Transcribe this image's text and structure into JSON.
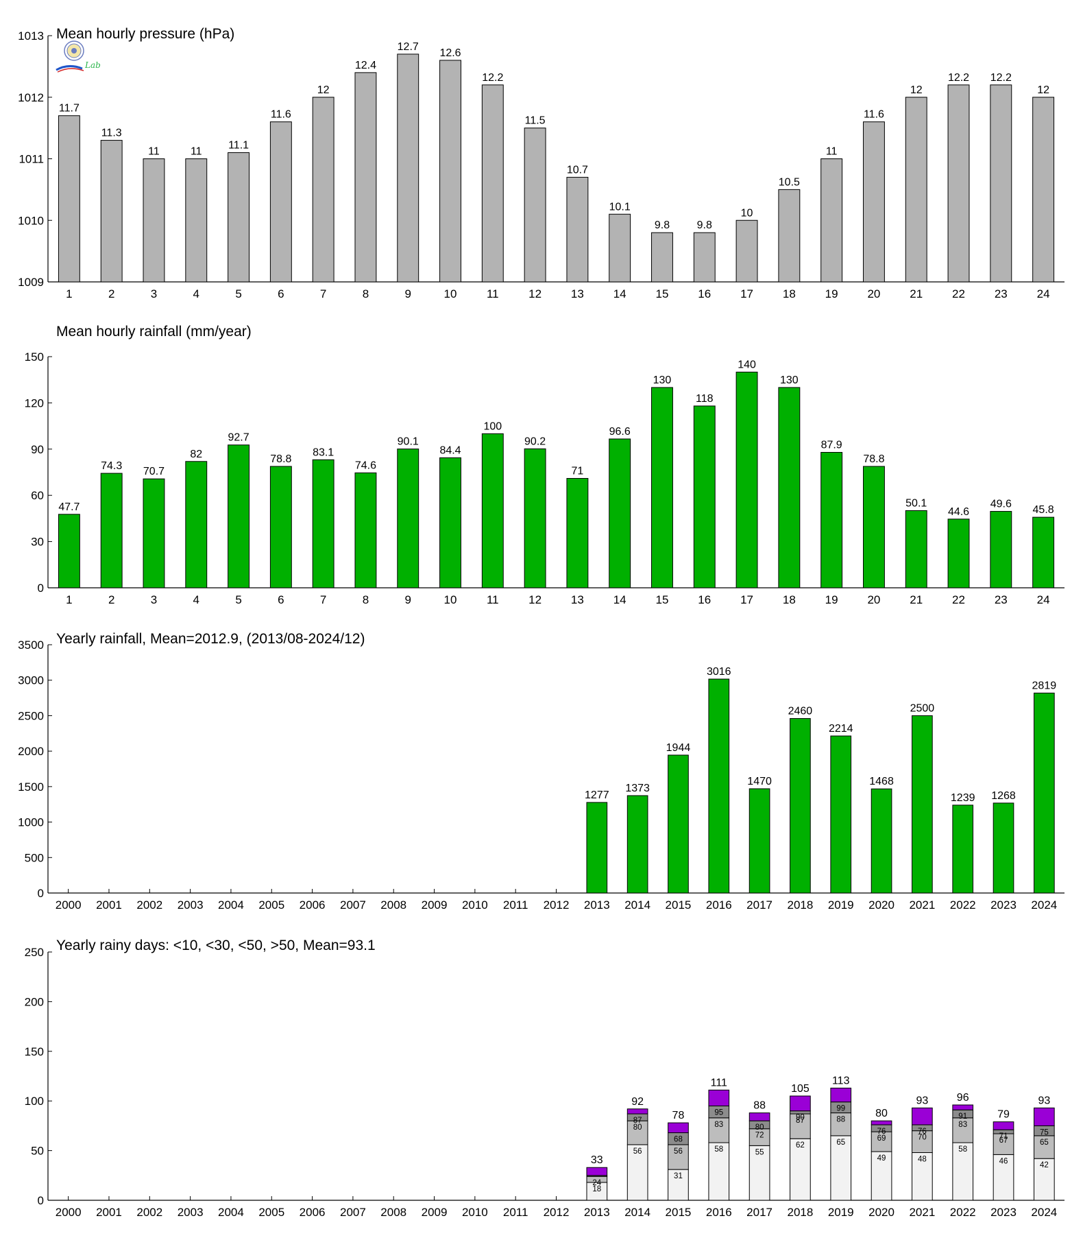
{
  "colors": {
    "pressure_bar": "#b3b3b3",
    "rain_bar": "#00b000",
    "days_lt10": "#f2f2f2",
    "days_lt30": "#bdbdbd",
    "days_lt50": "#8c8c8c",
    "days_gt50": "#9a00d6",
    "axis": "#000000"
  },
  "logo": {
    "icon": "seal-logo-icon",
    "text": "Lab"
  },
  "chart_data": [
    {
      "id": "pressure",
      "type": "bar",
      "title": "Mean hourly pressure (hPa)",
      "categories": [
        "1",
        "2",
        "3",
        "4",
        "5",
        "6",
        "7",
        "8",
        "9",
        "10",
        "11",
        "12",
        "13",
        "14",
        "15",
        "16",
        "17",
        "18",
        "19",
        "20",
        "21",
        "22",
        "23",
        "24"
      ],
      "values": [
        1011.7,
        1011.3,
        1011,
        1011,
        1011.1,
        1011.6,
        1012,
        1012.4,
        1012.7,
        1012.6,
        1012.2,
        1011.5,
        1010.7,
        1010.1,
        1009.8,
        1009.8,
        1010,
        1010.5,
        1011,
        1011.6,
        1012,
        1012.2,
        1012.2,
        1012
      ],
      "labels": [
        "11.7",
        "11.3",
        "11",
        "11",
        "11.1",
        "11.6",
        "12",
        "12.4",
        "12.7",
        "12.6",
        "12.2",
        "11.5",
        "10.7",
        "10.1",
        "9.8",
        "9.8",
        "10",
        "10.5",
        "11",
        "11.6",
        "12",
        "12.2",
        "12.2",
        "12"
      ],
      "ylim": [
        1009,
        1013
      ],
      "yticks": [
        "1009",
        "1010",
        "1011",
        "1012",
        "1013"
      ],
      "ytick_values": [
        1009,
        1010,
        1011,
        1012,
        1013
      ],
      "grid": false
    },
    {
      "id": "hourly_rain",
      "type": "bar",
      "title": "Mean hourly rainfall (mm/year)",
      "categories": [
        "1",
        "2",
        "3",
        "4",
        "5",
        "6",
        "7",
        "8",
        "9",
        "10",
        "11",
        "12",
        "13",
        "14",
        "15",
        "16",
        "17",
        "18",
        "19",
        "20",
        "21",
        "22",
        "23",
        "24"
      ],
      "values": [
        47.7,
        74.3,
        70.7,
        82,
        92.7,
        78.8,
        83.1,
        74.6,
        90.1,
        84.4,
        100,
        90.2,
        71,
        96.6,
        130,
        118,
        140,
        130,
        87.9,
        78.8,
        50.1,
        44.6,
        49.6,
        45.8
      ],
      "labels": [
        "47.7",
        "74.3",
        "70.7",
        "82",
        "92.7",
        "78.8",
        "83.1",
        "74.6",
        "90.1",
        "84.4",
        "100",
        "90.2",
        "71",
        "96.6",
        "130",
        "118",
        "140",
        "130",
        "87.9",
        "78.8",
        "50.1",
        "44.6",
        "49.6",
        "45.8"
      ],
      "ylim": [
        0,
        150
      ],
      "yticks": [
        "0",
        "30",
        "60",
        "90",
        "120",
        "150"
      ],
      "ytick_values": [
        0,
        30,
        60,
        90,
        120,
        150
      ],
      "grid": false
    },
    {
      "id": "yearly_rain",
      "type": "bar",
      "title": "Yearly rainfall, Mean=2012.9, (2013/08-2024/12)",
      "categories": [
        "2000",
        "2001",
        "2002",
        "2003",
        "2004",
        "2005",
        "2006",
        "2007",
        "2008",
        "2009",
        "2010",
        "2011",
        "2012",
        "2013",
        "2014",
        "2015",
        "2016",
        "2017",
        "2018",
        "2019",
        "2020",
        "2021",
        "2022",
        "2023",
        "2024"
      ],
      "values": [
        null,
        null,
        null,
        null,
        null,
        null,
        null,
        null,
        null,
        null,
        null,
        null,
        null,
        1277,
        1373,
        1944,
        3016,
        1470,
        2460,
        2214,
        1468,
        2500,
        1239,
        1268,
        2819
      ],
      "labels": [
        "",
        "",
        "",
        "",
        "",
        "",
        "",
        "",
        "",
        "",
        "",
        "",
        "",
        "1277",
        "1373",
        "1944",
        "3016",
        "1470",
        "2460",
        "2214",
        "1468",
        "2500",
        "1239",
        "1268",
        "2819"
      ],
      "ylim": [
        0,
        3500
      ],
      "yticks": [
        "0",
        "500",
        "1000",
        "1500",
        "2000",
        "2500",
        "3000",
        "3500"
      ],
      "ytick_values": [
        0,
        500,
        1000,
        1500,
        2000,
        2500,
        3000,
        3500
      ],
      "grid": false
    },
    {
      "id": "rainy_days",
      "type": "bar",
      "stacked": true,
      "title": "Yearly rainy days: <10, <30, <50, >50, Mean=93.1",
      "categories": [
        "2000",
        "2001",
        "2002",
        "2003",
        "2004",
        "2005",
        "2006",
        "2007",
        "2008",
        "2009",
        "2010",
        "2011",
        "2012",
        "2013",
        "2014",
        "2015",
        "2016",
        "2017",
        "2018",
        "2019",
        "2020",
        "2021",
        "2022",
        "2023",
        "2024"
      ],
      "series": [
        {
          "key": "lt10",
          "cumulative": [
            null,
            null,
            null,
            null,
            null,
            null,
            null,
            null,
            null,
            null,
            null,
            null,
            null,
            18,
            56,
            31,
            58,
            55,
            62,
            65,
            49,
            48,
            58,
            46,
            42
          ]
        },
        {
          "key": "lt30",
          "cumulative": [
            null,
            null,
            null,
            null,
            null,
            null,
            null,
            null,
            null,
            null,
            null,
            null,
            null,
            24,
            80,
            56,
            83,
            72,
            87,
            88,
            69,
            70,
            83,
            67,
            65
          ]
        },
        {
          "key": "lt50",
          "cumulative": [
            null,
            null,
            null,
            null,
            null,
            null,
            null,
            null,
            null,
            null,
            null,
            null,
            null,
            25,
            87,
            68,
            95,
            80,
            90,
            99,
            76,
            76,
            91,
            71,
            75
          ]
        },
        {
          "key": "gt50",
          "cumulative": [
            null,
            null,
            null,
            null,
            null,
            null,
            null,
            null,
            null,
            null,
            null,
            null,
            null,
            33,
            92,
            78,
            111,
            88,
            105,
            113,
            80,
            93,
            96,
            79,
            93
          ]
        }
      ],
      "inner_labels": {
        "lt10": [
          "",
          "",
          "",
          "",
          "",
          "",
          "",
          "",
          "",
          "",
          "",
          "",
          "",
          "18",
          "56",
          "31",
          "58",
          "55",
          "62",
          "65",
          "49",
          "48",
          "58",
          "46",
          "42"
        ],
        "lt30": [
          "",
          "",
          "",
          "",
          "",
          "",
          "",
          "",
          "",
          "",
          "",
          "",
          "",
          "24",
          "80",
          "56",
          "83",
          "72",
          "87",
          "88",
          "69",
          "70",
          "83",
          "67",
          "65"
        ],
        "lt50": [
          "",
          "",
          "",
          "",
          "",
          "",
          "",
          "",
          "",
          "",
          "",
          "",
          "",
          "",
          "87",
          "68",
          "95",
          "80",
          "90",
          "99",
          "76",
          "76",
          "91",
          "71",
          "75"
        ]
      },
      "totals": [
        "",
        "",
        "",
        "",
        "",
        "",
        "",
        "",
        "",
        "",
        "",
        "",
        "",
        "33",
        "92",
        "78",
        "111",
        "88",
        "105",
        "113",
        "80",
        "93",
        "96",
        "79",
        "93"
      ],
      "ylim": [
        0,
        250
      ],
      "yticks": [
        "0",
        "50",
        "100",
        "150",
        "200",
        "250"
      ],
      "ytick_values": [
        0,
        50,
        100,
        150,
        200,
        250
      ],
      "grid": false
    }
  ]
}
